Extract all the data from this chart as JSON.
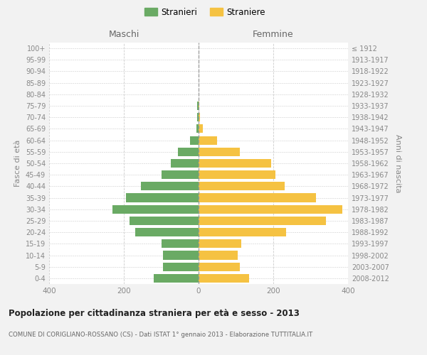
{
  "age_groups": [
    "100+",
    "95-99",
    "90-94",
    "85-89",
    "80-84",
    "75-79",
    "70-74",
    "65-69",
    "60-64",
    "55-59",
    "50-54",
    "45-49",
    "40-44",
    "35-39",
    "30-34",
    "25-29",
    "20-24",
    "15-19",
    "10-14",
    "5-9",
    "0-4"
  ],
  "birth_years": [
    "≤ 1912",
    "1913-1917",
    "1918-1922",
    "1923-1927",
    "1928-1932",
    "1933-1937",
    "1938-1942",
    "1943-1947",
    "1948-1952",
    "1953-1957",
    "1958-1962",
    "1963-1967",
    "1968-1972",
    "1973-1977",
    "1978-1982",
    "1983-1987",
    "1988-1992",
    "1993-1997",
    "1998-2002",
    "2003-2007",
    "2008-2012"
  ],
  "maschi": [
    0,
    0,
    0,
    0,
    0,
    3,
    4,
    5,
    22,
    55,
    75,
    100,
    155,
    195,
    230,
    185,
    170,
    100,
    95,
    95,
    120
  ],
  "femmine": [
    0,
    0,
    0,
    0,
    0,
    2,
    4,
    12,
    50,
    110,
    195,
    205,
    230,
    315,
    385,
    340,
    235,
    115,
    105,
    110,
    135
  ],
  "maschi_color": "#6aaa64",
  "femmine_color": "#f5c242",
  "background_color": "#f2f2f2",
  "plot_bg_color": "#ffffff",
  "grid_color": "#cccccc",
  "title": "Popolazione per cittadinanza straniera per età e sesso - 2013",
  "subtitle": "COMUNE DI CORIGLIANO-ROSSANO (CS) - Dati ISTAT 1° gennaio 2013 - Elaborazione TUTTITALIA.IT",
  "xlabel_left": "Maschi",
  "xlabel_right": "Femmine",
  "ylabel_left": "Fasce di età",
  "ylabel_right": "Anni di nascita",
  "legend_stranieri": "Stranieri",
  "legend_straniere": "Straniere",
  "xlim": 400
}
